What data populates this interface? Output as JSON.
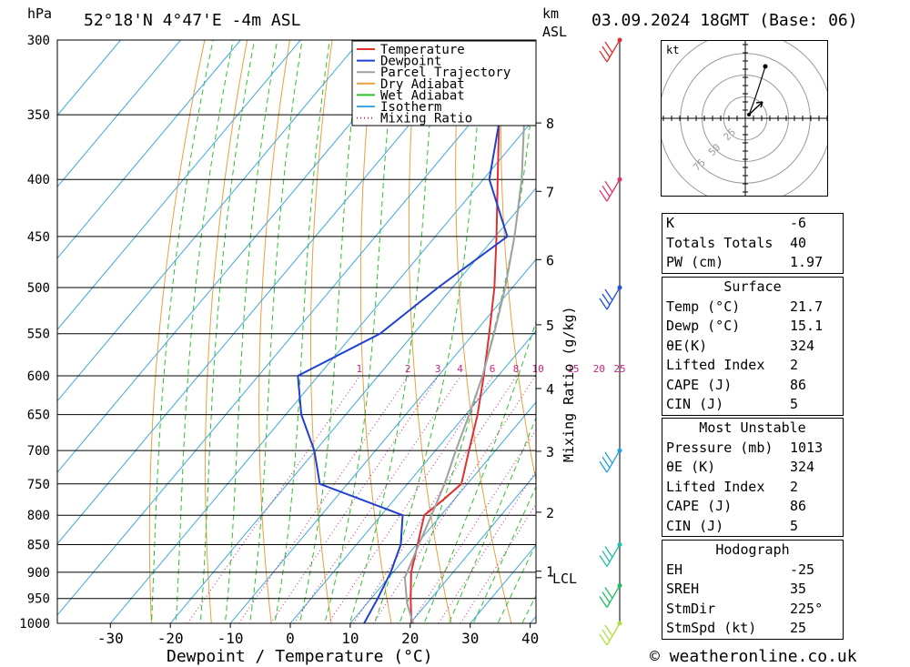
{
  "header": {
    "location": "52°18'N  4°47'E  -4m  ASL",
    "datetime": "03.09.2024  18GMT  (Base: 06)",
    "pressure_unit": "hPa",
    "height_unit_top": "km",
    "height_unit_bottom": "ASL"
  },
  "chart_data": {
    "type": "skew-t",
    "xlabel": "Dewpoint / Temperature (°C)",
    "ylabel_left": "hPa",
    "ylabel_right": "Mixing Ratio (g/kg)",
    "pressure_levels": [
      300,
      350,
      400,
      450,
      500,
      550,
      600,
      650,
      700,
      750,
      800,
      850,
      900,
      950,
      1000
    ],
    "temperature_ticks": [
      -30,
      -20,
      -10,
      0,
      10,
      20,
      30,
      40
    ],
    "height_km_labels": [
      {
        "label": "8",
        "p": 356
      },
      {
        "label": "7",
        "p": 410
      },
      {
        "label": "6",
        "p": 472
      },
      {
        "label": "5",
        "p": 540
      },
      {
        "label": "4",
        "p": 616
      },
      {
        "label": "3",
        "p": 701
      },
      {
        "label": "2",
        "p": 795
      },
      {
        "label": "1",
        "p": 898
      }
    ],
    "lcl": {
      "label": "LCL",
      "p": 910
    },
    "mixing_ratio_labels": [
      "1",
      "2",
      "3",
      "4",
      "6",
      "8",
      "10",
      "15",
      "20",
      "25"
    ],
    "legend": [
      "Temperature",
      "Dewpoint",
      "Parcel Trajectory",
      "Dry Adiabat",
      "Wet Adiabat",
      "Isotherm",
      "Mixing Ratio"
    ],
    "legend_placement": "top-center",
    "series": [
      {
        "name": "Temperature",
        "color": "#e03030",
        "points": [
          [
            1013,
            21.7
          ],
          [
            1000,
            20.2
          ],
          [
            950,
            16.6
          ],
          [
            900,
            13.0
          ],
          [
            850,
            10.2
          ],
          [
            800,
            7.2
          ],
          [
            775,
            8.2
          ],
          [
            750,
            9.0
          ],
          [
            700,
            5.6
          ],
          [
            650,
            2.0
          ],
          [
            600,
            -2.4
          ],
          [
            550,
            -7.4
          ],
          [
            500,
            -13.0
          ],
          [
            450,
            -19.8
          ],
          [
            400,
            -27.6
          ],
          [
            350,
            -36.4
          ],
          [
            300,
            -46.0
          ]
        ]
      },
      {
        "name": "Dewpoint",
        "color": "#2040d0",
        "points": [
          [
            1013,
            15.1
          ],
          [
            1000,
            12.3
          ],
          [
            950,
            11.1
          ],
          [
            900,
            9.6
          ],
          [
            850,
            7.4
          ],
          [
            800,
            3.6
          ],
          [
            750,
            -14.6
          ],
          [
            700,
            -20.2
          ],
          [
            650,
            -27.4
          ],
          [
            600,
            -33.4
          ],
          [
            550,
            -25.6
          ],
          [
            500,
            -22.4
          ],
          [
            450,
            -18.0
          ],
          [
            400,
            -29.0
          ],
          [
            350,
            -36.2
          ],
          [
            300,
            -49.0
          ]
        ]
      },
      {
        "name": "Parcel Trajectory",
        "color": "#a0a0a0",
        "points": [
          [
            1013,
            21.7
          ],
          [
            960,
            16.7
          ],
          [
            910,
            12.7
          ],
          [
            850,
            10.4
          ],
          [
            800,
            8.4
          ],
          [
            750,
            6.2
          ],
          [
            700,
            3.4
          ],
          [
            650,
            0.6
          ],
          [
            600,
            -2.6
          ],
          [
            550,
            -6.6
          ],
          [
            500,
            -11.2
          ],
          [
            450,
            -16.8
          ],
          [
            400,
            -23.6
          ],
          [
            350,
            -32.2
          ],
          [
            300,
            -43.0
          ]
        ]
      }
    ],
    "wind_barbs": [
      {
        "p": 300,
        "color": "#e03030"
      },
      {
        "p": 400,
        "color": "#e0306a"
      },
      {
        "p": 500,
        "color": "#2050e0"
      },
      {
        "p": 700,
        "color": "#20a0e0"
      },
      {
        "p": 850,
        "color": "#20c0a0"
      },
      {
        "p": 925,
        "color": "#20c060"
      },
      {
        "p": 1000,
        "color": "#b0e040"
      }
    ]
  },
  "hodograph": {
    "unit": "kt",
    "rings": [
      "25",
      "50",
      "75"
    ]
  },
  "indices": {
    "rows": [
      {
        "label": "K",
        "value": "-6"
      },
      {
        "label": "Totals Totals",
        "value": "40"
      },
      {
        "label": "PW (cm)",
        "value": "1.97"
      }
    ]
  },
  "surface": {
    "title": "Surface",
    "temp_label": "Temp (°C)",
    "temp": "21.7",
    "dewp_label": "Dewp (°C)",
    "dewp": "15.1",
    "theta_label": "θE(K)",
    "theta": "324",
    "li_label": "Lifted Index",
    "li": "2",
    "cape_label": "CAPE (J)",
    "cape": "86",
    "cin_label": "CIN (J)",
    "cin": "5"
  },
  "most_unstable": {
    "title": "Most Unstable",
    "pressure_label": "Pressure (mb)",
    "pressure": "1013",
    "theta_label": "θE (K)",
    "theta": "324",
    "li_label": "Lifted Index",
    "li": "2",
    "cape_label": "CAPE (J)",
    "cape": "86",
    "cin_label": "CIN (J)",
    "cin": "5"
  },
  "hodograph_table": {
    "title": "Hodograph",
    "eh_label": "EH",
    "eh": "-25",
    "srh_label": "SREH",
    "srh": "35",
    "stmdir_label": "StmDir",
    "stmdir": "225°",
    "stmspd_label": "StmSpd (kt)",
    "stmspd": "25"
  },
  "footer": {
    "copyright": "© weatheronline.co.uk"
  }
}
